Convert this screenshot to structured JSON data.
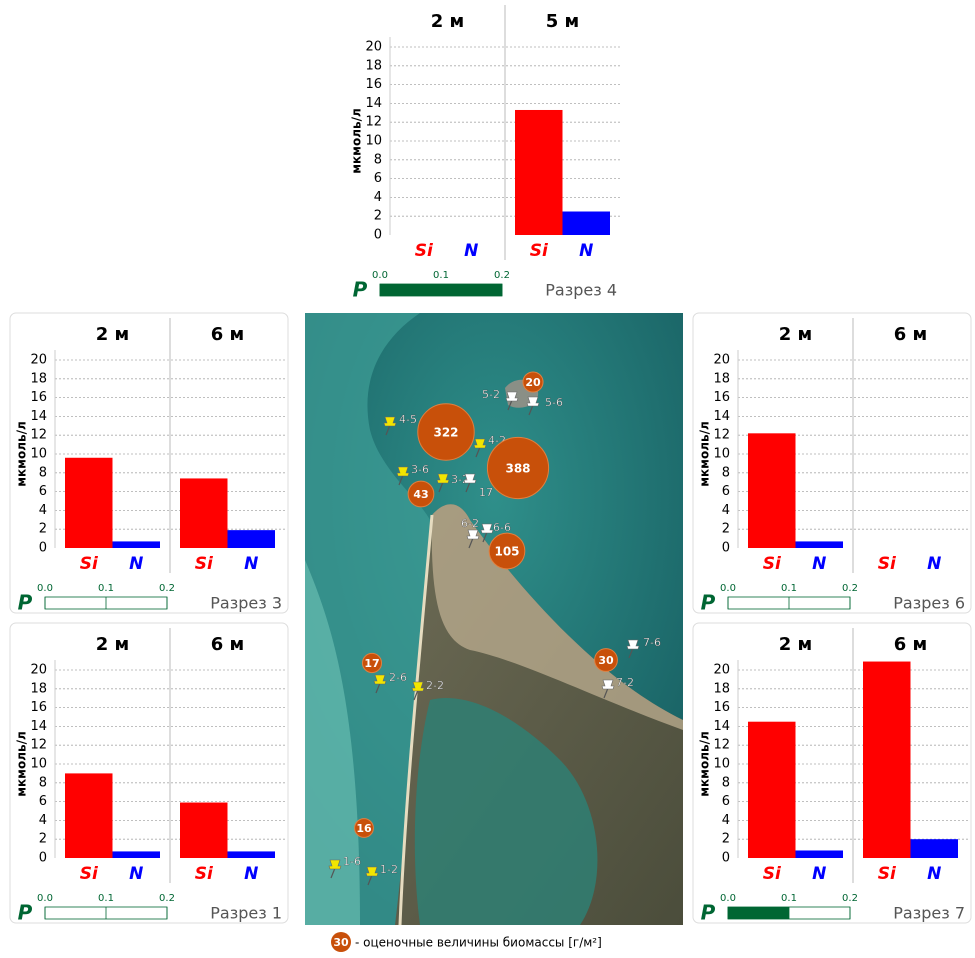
{
  "chart_data": [
    {
      "type": "bar",
      "title": "Разрез 4",
      "ylabel": "мкмоль/л",
      "ylim": [
        0,
        20
      ],
      "yticks": [
        0,
        2,
        4,
        6,
        8,
        10,
        12,
        14,
        16,
        18,
        20
      ],
      "grid": true,
      "categories": [
        "Si",
        "N"
      ],
      "colors": [
        "#ff0000",
        "#0000ff"
      ],
      "panels": [
        {
          "title": "2 м",
          "values": [
            null,
            null
          ]
        },
        {
          "title": "5 м",
          "values": [
            13.3,
            2.5
          ]
        }
      ],
      "p_label": "P",
      "p_xlim": [
        0,
        0.2
      ],
      "p_xticks": [
        {
          "value": 0,
          "label": "0.0"
        },
        0.1,
        0.2
      ],
      "p_value": 0.2,
      "p_color": "#006633"
    },
    {
      "type": "bar",
      "title": "Разрез 3",
      "ylabel": "мкмоль/л",
      "ylim": [
        0,
        20
      ],
      "yticks": [
        0,
        2,
        4,
        6,
        8,
        10,
        12,
        14,
        16,
        18,
        20
      ],
      "grid": true,
      "categories": [
        "Si",
        "N"
      ],
      "colors": [
        "#ff0000",
        "#0000ff"
      ],
      "panels": [
        {
          "title": "2 м",
          "values": [
            9.6,
            0.7
          ]
        },
        {
          "title": "6 м",
          "values": [
            7.4,
            1.9
          ]
        }
      ],
      "p_label": "P",
      "p_xlim": [
        0,
        0.2
      ],
      "p_xticks": [
        {
          "value": 0,
          "label": "0.0"
        },
        0.1,
        0.2
      ],
      "p_color": "#006633"
    },
    {
      "type": "bar",
      "title": "Разрез 6",
      "ylabel": "мкмоль/л",
      "ylim": [
        0,
        20
      ],
      "yticks": [
        0,
        2,
        4,
        6,
        8,
        10,
        12,
        14,
        16,
        18,
        20
      ],
      "grid": true,
      "categories": [
        "Si",
        "N"
      ],
      "colors": [
        "#ff0000",
        "#0000ff"
      ],
      "panels": [
        {
          "title": "2 м",
          "values": [
            12.2,
            0.7
          ]
        },
        {
          "title": "6 м",
          "values": [
            null,
            null
          ]
        }
      ],
      "p_label": "P",
      "p_xlim": [
        0,
        0.2
      ],
      "p_xticks": [
        {
          "value": 0,
          "label": "0.0"
        },
        0.1,
        0.2
      ],
      "p_color": "#006633"
    },
    {
      "type": "bar",
      "title": "Разрез 1",
      "ylabel": "мкмоль/л",
      "ylim": [
        0,
        20
      ],
      "yticks": [
        0,
        2,
        4,
        6,
        8,
        10,
        12,
        14,
        16,
        18,
        20
      ],
      "grid": true,
      "categories": [
        "Si",
        "N"
      ],
      "colors": [
        "#ff0000",
        "#0000ff"
      ],
      "panels": [
        {
          "title": "2 м",
          "values": [
            9.0,
            0.7
          ]
        },
        {
          "title": "6 м",
          "values": [
            5.9,
            0.7
          ]
        }
      ],
      "p_label": "P",
      "p_xlim": [
        0,
        0.2
      ],
      "p_xticks": [
        {
          "value": 0,
          "label": "0.0"
        },
        0.1,
        0.2
      ],
      "p_color": "#006633"
    },
    {
      "type": "bar",
      "title": "Разрез 7",
      "ylabel": "мкмоль/л",
      "ylim": [
        0,
        20
      ],
      "yticks": [
        0,
        2,
        4,
        6,
        8,
        10,
        12,
        14,
        16,
        18,
        20
      ],
      "grid": true,
      "categories": [
        "Si",
        "N"
      ],
      "colors": [
        "#ff0000",
        "#0000ff"
      ],
      "panels": [
        {
          "title": "2 м",
          "values": [
            14.5,
            0.8
          ]
        },
        {
          "title": "6 м",
          "values": [
            20.9,
            2.0
          ]
        }
      ],
      "p_label": "P",
      "p_xlim": [
        0,
        0.2
      ],
      "p_xticks": [
        {
          "value": 0,
          "label": "0.0"
        },
        0.1,
        0.2
      ],
      "p_value": 0.1,
      "p_color": "#006633"
    }
  ],
  "map": {
    "stations": [
      {
        "label": "4-5",
        "color": "#f2e600"
      },
      {
        "label": "5-2",
        "color": "#ffffff"
      },
      {
        "label": "5-6",
        "color": "#ffffff"
      },
      {
        "label": "4-2",
        "color": "#f2e600"
      },
      {
        "label": "3-6",
        "color": "#f2e600"
      },
      {
        "label": "3-2",
        "color": "#f2e600"
      },
      {
        "label": "17",
        "color": "#ffffff"
      },
      {
        "label": "6-2",
        "color": "#ffffff"
      },
      {
        "label": "6-6",
        "color": "#ffffff"
      },
      {
        "label": "7-6",
        "color": "#ffffff"
      },
      {
        "label": "7-2",
        "color": "#ffffff"
      },
      {
        "label": "2-6",
        "color": "#f2e600"
      },
      {
        "label": "2-2",
        "color": "#f2e600"
      },
      {
        "label": "1-6",
        "color": "#f2e600"
      },
      {
        "label": "1-2",
        "color": "#f2e600"
      }
    ],
    "biomass": [
      322,
      388,
      20,
      43,
      105,
      30,
      17,
      16
    ],
    "biomass_color": "#c8500a"
  },
  "legend": {
    "example": 30,
    "text": "- оценочные величины биомассы [г/м²]"
  }
}
